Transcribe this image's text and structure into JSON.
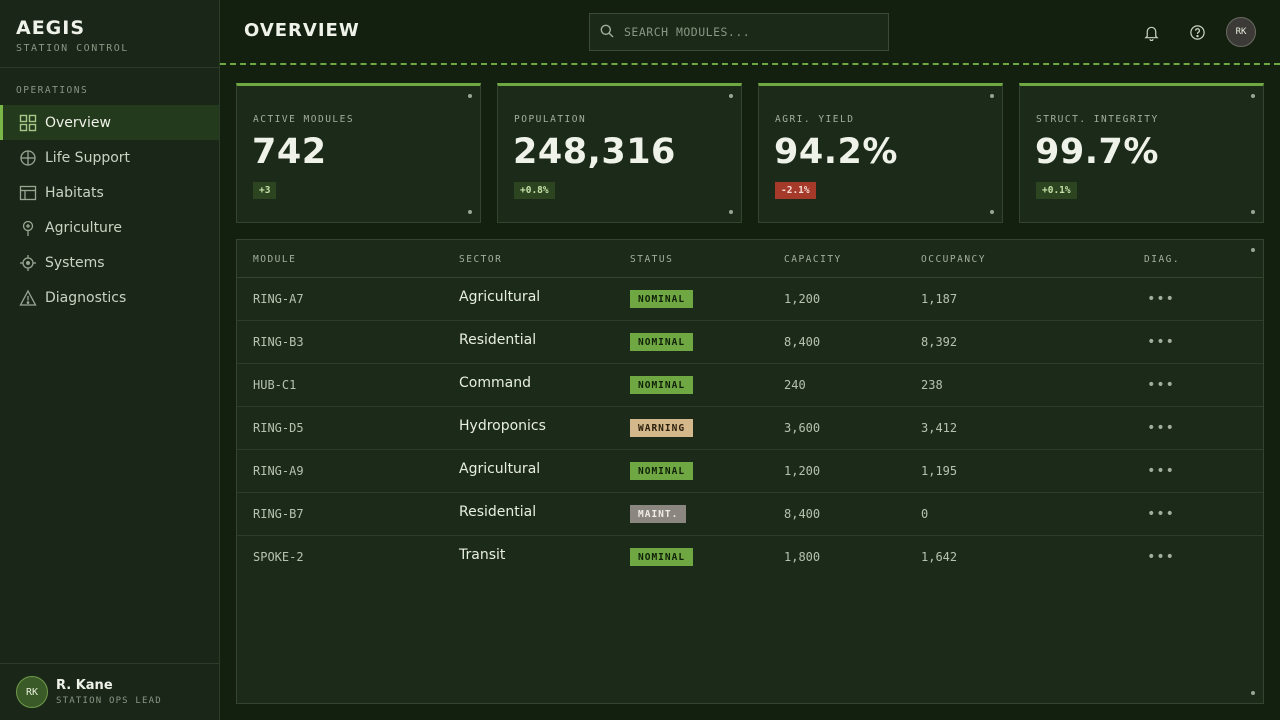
{
  "brand": {
    "title": "AEGIS",
    "subtitle": "STATION CONTROL"
  },
  "sidebar": {
    "heading": "OPERATIONS",
    "items": [
      {
        "label": "Overview",
        "icon": "grid-icon",
        "active": true
      },
      {
        "label": "Life Support",
        "icon": "globe-icon",
        "active": false
      },
      {
        "label": "Habitats",
        "icon": "layout-icon",
        "active": false
      },
      {
        "label": "Agriculture",
        "icon": "sprout-pin-icon",
        "active": false
      },
      {
        "label": "Systems",
        "icon": "crosshair-icon",
        "active": false
      },
      {
        "label": "Diagnostics",
        "icon": "warning-triangle-icon",
        "active": false
      }
    ]
  },
  "user": {
    "initials": "RK",
    "name": "R. Kane",
    "role": "STATION OPS LEAD"
  },
  "header": {
    "title": "OVERVIEW",
    "search_placeholder": "SEARCH MODULES...",
    "avatar_initials": "RK"
  },
  "stats": [
    {
      "label": "ACTIVE MODULES",
      "value": "742",
      "delta": "+3",
      "trend": "up"
    },
    {
      "label": "POPULATION",
      "value": "248,316",
      "delta": "+0.8%",
      "trend": "up"
    },
    {
      "label": "AGRI. YIELD",
      "value": "94.2%",
      "delta": "-2.1%",
      "trend": "down"
    },
    {
      "label": "STRUCT. INTEGRITY",
      "value": "99.7%",
      "delta": "+0.1%",
      "trend": "up"
    }
  ],
  "table": {
    "columns": [
      "MODULE",
      "SECTOR",
      "STATUS",
      "CAPACITY",
      "OCCUPANCY",
      "DIAG."
    ],
    "rows": [
      {
        "module": "RING-A7",
        "sector": "Agricultural",
        "status": "NOMINAL",
        "capacity": "1,200",
        "occupancy": "1,187",
        "diag": "•••"
      },
      {
        "module": "RING-B3",
        "sector": "Residential",
        "status": "NOMINAL",
        "capacity": "8,400",
        "occupancy": "8,392",
        "diag": "•••"
      },
      {
        "module": "HUB-C1",
        "sector": "Command",
        "status": "NOMINAL",
        "capacity": "240",
        "occupancy": "238",
        "diag": "•••"
      },
      {
        "module": "RING-D5",
        "sector": "Hydroponics",
        "status": "WARNING",
        "capacity": "3,600",
        "occupancy": "3,412",
        "diag": "•••"
      },
      {
        "module": "RING-A9",
        "sector": "Agricultural",
        "status": "NOMINAL",
        "capacity": "1,200",
        "occupancy": "1,195",
        "diag": "•••"
      },
      {
        "module": "RING-B7",
        "sector": "Residential",
        "status": "MAINT.",
        "capacity": "8,400",
        "occupancy": "0",
        "diag": "•••"
      },
      {
        "module": "SPOKE-2",
        "sector": "Transit",
        "status": "NOMINAL",
        "capacity": "1,800",
        "occupancy": "1,642",
        "diag": "•••"
      }
    ]
  },
  "colors": {
    "accent": "#6fa843",
    "background": "#13200f",
    "panel": "#1c2b19",
    "status_nominal": "#6fa843",
    "status_warning": "#d4b88c",
    "status_maint": "#8b8680",
    "delta_down": "#a63a2a"
  }
}
